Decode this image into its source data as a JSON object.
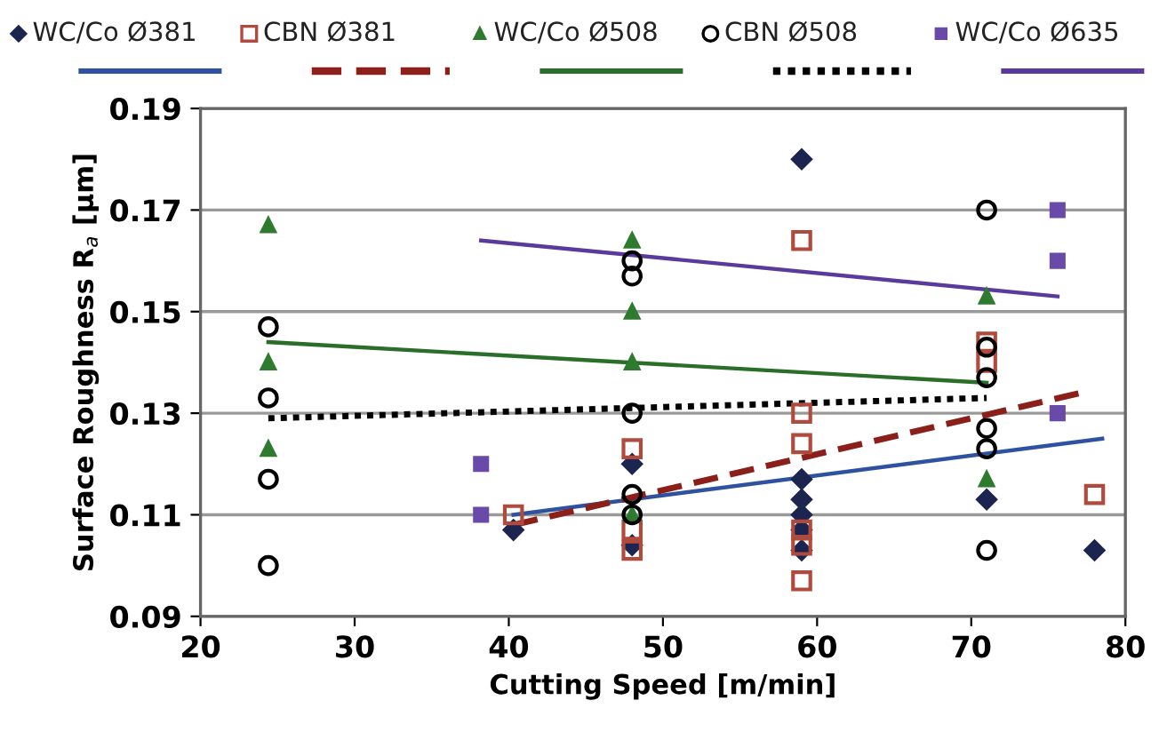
{
  "chart_data": {
    "type": "scatter",
    "xlabel": "Cutting Speed [m/min]",
    "ylabel": "Surface Roughness R$_{a}$ [μm]",
    "xlim": [
      20,
      80
    ],
    "xticks": [
      20,
      30,
      40,
      50,
      60,
      70,
      80
    ],
    "ylim": [
      0.09,
      0.19
    ],
    "yticks": [
      0.09,
      0.11,
      0.13,
      0.15,
      0.17,
      0.19
    ],
    "grid": "y",
    "legend": "top",
    "series": [
      {
        "name": "WC/Co Ø381",
        "color": "#1c2550",
        "marker": "diamond",
        "x": [
          40.3,
          48,
          48,
          59,
          59,
          59,
          59,
          59,
          59,
          71,
          78
        ],
        "values": [
          0.107,
          0.12,
          0.104,
          0.18,
          0.117,
          0.113,
          0.11,
          0.107,
          0.103,
          0.113,
          0.103
        ]
      },
      {
        "name": "CBN Ø381",
        "color": "#b04a3c",
        "marker": "square",
        "x": [
          40.3,
          48,
          48,
          48,
          59,
          59,
          59,
          59,
          59,
          59,
          71,
          71,
          78
        ],
        "values": [
          0.11,
          0.123,
          0.107,
          0.103,
          0.164,
          0.13,
          0.124,
          0.107,
          0.104,
          0.097,
          0.144,
          0.14,
          0.114
        ]
      },
      {
        "name": "WC/Co Ø508",
        "color": "#2e7a2e",
        "marker": "triangle",
        "x": [
          24.4,
          24.4,
          24.4,
          48,
          48,
          48,
          48,
          71,
          71
        ],
        "values": [
          0.167,
          0.14,
          0.123,
          0.164,
          0.15,
          0.14,
          0.11,
          0.153,
          0.117
        ]
      },
      {
        "name": "CBN Ø508",
        "color": "#000000",
        "marker": "circle",
        "x": [
          24.4,
          24.4,
          24.4,
          24.4,
          48,
          48,
          48,
          48,
          48,
          71,
          71,
          71,
          71,
          71,
          71
        ],
        "values": [
          0.147,
          0.133,
          0.117,
          0.1,
          0.16,
          0.157,
          0.13,
          0.114,
          0.11,
          0.17,
          0.143,
          0.137,
          0.127,
          0.123,
          0.103
        ]
      },
      {
        "name": "WC/Co Ø635",
        "color": "#6a4aa8",
        "marker": "square",
        "x": [
          38.2,
          38.2,
          75.6,
          75.6,
          75.6
        ],
        "values": [
          0.12,
          0.11,
          0.17,
          0.16,
          0.13
        ]
      },
      {
        "type": "line",
        "color": "#2f52a0",
        "line_style": "solid",
        "x": [
          40.3,
          78.5
        ],
        "values": [
          0.11,
          0.125
        ]
      },
      {
        "type": "line",
        "color": "#8b1f1a",
        "line_style": "dashed",
        "x": [
          40.3,
          77.1
        ],
        "values": [
          0.108,
          0.134
        ]
      },
      {
        "type": "line",
        "color": "#2a6e2a",
        "line_style": "solid",
        "x": [
          24.4,
          71
        ],
        "values": [
          0.144,
          0.136
        ]
      },
      {
        "type": "line",
        "color": "#000000",
        "line_style": "dotted",
        "x": [
          24.4,
          71
        ],
        "values": [
          0.129,
          0.133
        ]
      },
      {
        "type": "line",
        "color": "#5a3a9a",
        "line_style": "solid",
        "x": [
          38.2,
          75.6
        ],
        "values": [
          0.164,
          0.153
        ]
      }
    ]
  }
}
